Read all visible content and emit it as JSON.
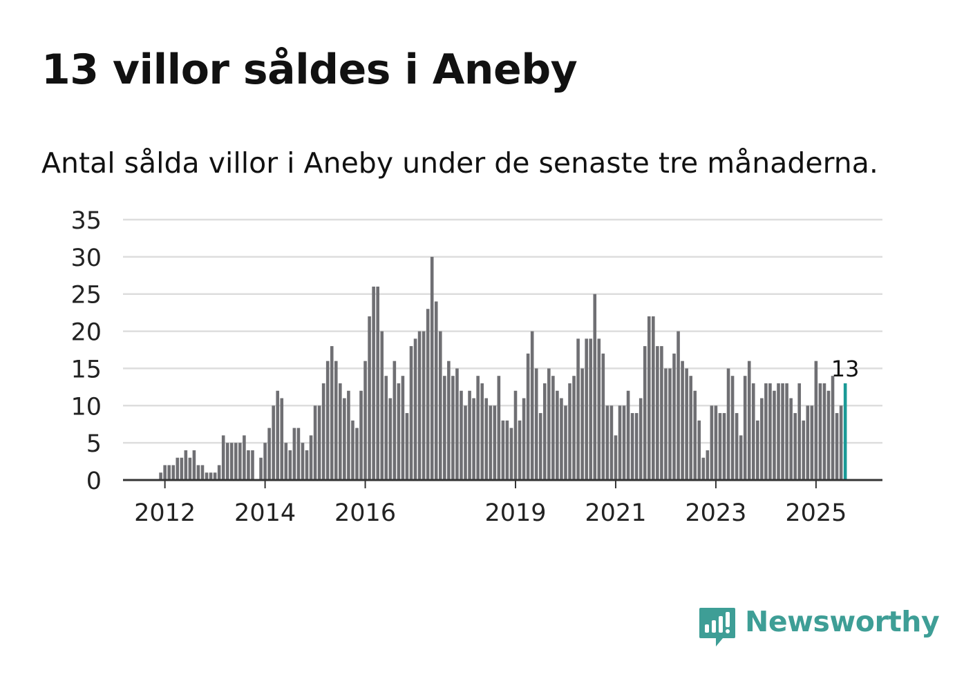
{
  "title": "13 villor såldes i Aneby",
  "subtitle": "Antal sålda villor i Aneby under de senaste tre månaderna.",
  "brand": {
    "name": "Newsworthy",
    "color": "#3e9e96",
    "icon": "newsworthy-logo-icon"
  },
  "colors": {
    "bar": "#6f6f73",
    "highlight": "#1a9a96",
    "grid": "#dddddd",
    "axis": "#333333",
    "text": "#222222"
  },
  "chart_data": {
    "type": "bar",
    "title": "Antal sålda villor i Aneby under de senaste tre månaderna.",
    "xlabel": "",
    "ylabel": "",
    "ylim": [
      0,
      35
    ],
    "yticks": [
      0,
      5,
      10,
      15,
      20,
      25,
      30,
      35
    ],
    "grid": true,
    "first_period": "2011-12",
    "period": "monthly, rolling three-month total",
    "xtick_labels": [
      {
        "label": "2012",
        "index": 1
      },
      {
        "label": "2014",
        "index": 25
      },
      {
        "label": "2016",
        "index": 49
      },
      {
        "label": "2019",
        "index": 85
      },
      {
        "label": "2021",
        "index": 109
      },
      {
        "label": "2023",
        "index": 133
      },
      {
        "label": "2025",
        "index": 157
      }
    ],
    "values": [
      1,
      2,
      2,
      2,
      3,
      3,
      4,
      3,
      4,
      2,
      2,
      1,
      1,
      1,
      2,
      6,
      5,
      5,
      5,
      5,
      6,
      4,
      4,
      0,
      3,
      5,
      7,
      10,
      12,
      11,
      5,
      4,
      7,
      7,
      5,
      4,
      6,
      10,
      10,
      13,
      16,
      18,
      16,
      13,
      11,
      12,
      8,
      7,
      12,
      16,
      22,
      26,
      26,
      20,
      14,
      11,
      16,
      13,
      14,
      9,
      18,
      19,
      20,
      20,
      23,
      30,
      24,
      20,
      14,
      16,
      14,
      15,
      12,
      10,
      12,
      11,
      14,
      13,
      11,
      10,
      10,
      14,
      8,
      8,
      7,
      12,
      8,
      11,
      17,
      20,
      15,
      9,
      13,
      15,
      14,
      12,
      11,
      10,
      13,
      14,
      19,
      15,
      19,
      19,
      25,
      19,
      17,
      10,
      10,
      6,
      10,
      10,
      12,
      9,
      9,
      11,
      18,
      22,
      22,
      18,
      18,
      15,
      15,
      17,
      20,
      16,
      15,
      14,
      12,
      8,
      3,
      4,
      10,
      10,
      9,
      9,
      15,
      14,
      9,
      6,
      14,
      16,
      13,
      8,
      11,
      13,
      13,
      12,
      13,
      13,
      13,
      11,
      9,
      13,
      8,
      10,
      10,
      16,
      13,
      13,
      12,
      14,
      9,
      10,
      13
    ],
    "highlight_index": 164,
    "highlight_label": "13"
  }
}
